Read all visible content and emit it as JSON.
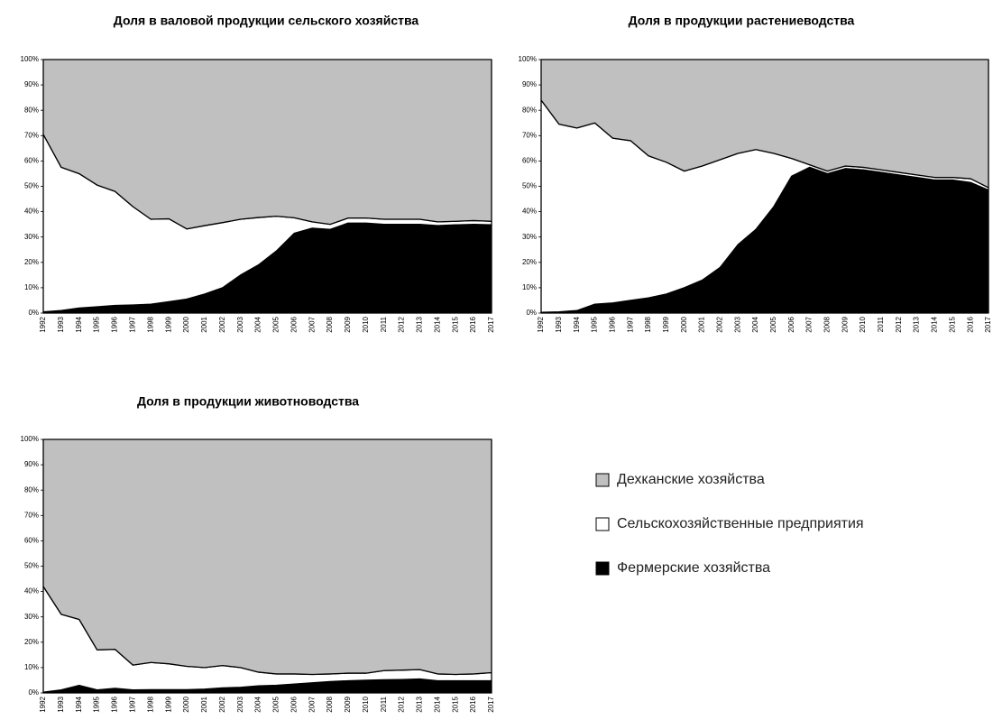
{
  "chart_data": [
    {
      "type": "area",
      "stacked": true,
      "title": "Доля в валовой продукции сельского хозяйства",
      "categories": [
        "1992",
        "1993",
        "1994",
        "1995",
        "1996",
        "1997",
        "1998",
        "1999",
        "2000",
        "2001",
        "2002",
        "2003",
        "2004",
        "2005",
        "2006",
        "2007",
        "2008",
        "2009",
        "2010",
        "2011",
        "2012",
        "2013",
        "2014",
        "2015",
        "2016",
        "2017"
      ],
      "series": [
        {
          "name": "Фермерские хозяйства",
          "color": "#000000",
          "values": [
            0.5,
            1,
            2,
            2.5,
            3,
            3.2,
            3.5,
            4.5,
            5.5,
            7.5,
            10,
            15,
            19,
            24.5,
            31.5,
            33.5,
            33,
            35.5,
            35.5,
            35,
            35,
            35,
            34.5,
            34.8,
            35,
            34.8
          ]
        },
        {
          "name": "Сельскохозяйственные предприятия",
          "color": "#ffffff",
          "values": [
            70,
            56.5,
            53,
            48,
            45,
            38.8,
            33.5,
            32.7,
            27.7,
            27,
            25.7,
            22,
            18.7,
            13.7,
            6.1,
            2.5,
            2,
            2,
            2,
            2,
            2,
            2,
            1.5,
            1.4,
            1.5,
            1.4
          ]
        },
        {
          "name": "Дехканские хозяйства",
          "color": "#c0c0c0",
          "values": [
            29.5,
            42.5,
            45,
            49.5,
            52,
            58,
            63,
            62.8,
            66.8,
            65.5,
            64.3,
            63,
            62.3,
            61.8,
            62.4,
            64,
            65,
            62.5,
            62.5,
            63,
            63,
            63,
            64,
            63.8,
            63.5,
            63.8
          ]
        }
      ],
      "ylim": [
        0,
        100
      ],
      "yticks": [
        {
          "value": 0,
          "label": "0%"
        },
        {
          "value": 10,
          "label": "10%"
        },
        {
          "value": 20,
          "label": "20%"
        },
        {
          "value": 30,
          "label": "30%"
        },
        {
          "value": 40,
          "label": "40%"
        },
        {
          "value": 50,
          "label": "50%"
        },
        {
          "value": 60,
          "label": "60%"
        },
        {
          "value": 70,
          "label": "70%"
        },
        {
          "value": 80,
          "label": "80%"
        },
        {
          "value": 90,
          "label": "90%"
        },
        {
          "value": 100,
          "label": "100%"
        }
      ]
    },
    {
      "type": "area",
      "stacked": true,
      "title": "Доля в продукции растениеводства",
      "categories": [
        "1992",
        "1993",
        "1994",
        "1995",
        "1996",
        "1997",
        "1998",
        "1999",
        "2000",
        "2001",
        "2002",
        "2003",
        "2004",
        "2005",
        "2006",
        "2007",
        "2008",
        "2009",
        "2010",
        "2011",
        "2012",
        "2013",
        "2014",
        "2015",
        "2016",
        "2017"
      ],
      "series": [
        {
          "name": "Фермерские хозяйства",
          "color": "#000000",
          "values": [
            0.3,
            0.5,
            1,
            3.5,
            4,
            5,
            6,
            7.5,
            10,
            13,
            18,
            27,
            33,
            42,
            54,
            57.5,
            55,
            57,
            56.5,
            55.5,
            54.5,
            53.5,
            52.5,
            52.5,
            51.5,
            48.5
          ]
        },
        {
          "name": "Сельскохозяйственные предприятия",
          "color": "#ffffff",
          "values": [
            83.7,
            74,
            72,
            71.5,
            65,
            63,
            56,
            52,
            46,
            45,
            42.5,
            36,
            31.5,
            21,
            7,
            1,
            1,
            1,
            1,
            1,
            1,
            1,
            1,
            1,
            1.5,
            1
          ]
        },
        {
          "name": "Дехканские хозяйства",
          "color": "#c0c0c0",
          "values": [
            16,
            25.5,
            27,
            25,
            31,
            32,
            38,
            40.5,
            44,
            42,
            39.5,
            37,
            35.5,
            37,
            39,
            41.5,
            44,
            42,
            42.5,
            43.5,
            44.5,
            45.5,
            46.5,
            46.5,
            47,
            50.5
          ]
        }
      ],
      "ylim": [
        0,
        100
      ],
      "yticks": [
        {
          "value": 0,
          "label": "0%"
        },
        {
          "value": 10,
          "label": "10%"
        },
        {
          "value": 20,
          "label": "20%"
        },
        {
          "value": 30,
          "label": "30%"
        },
        {
          "value": 40,
          "label": "40%"
        },
        {
          "value": 50,
          "label": "50%"
        },
        {
          "value": 60,
          "label": "60%"
        },
        {
          "value": 70,
          "label": "70%"
        },
        {
          "value": 80,
          "label": "80%"
        },
        {
          "value": 90,
          "label": "90%"
        },
        {
          "value": 100,
          "label": "100%"
        }
      ]
    },
    {
      "type": "area",
      "stacked": true,
      "title": "Доля в продукции животноводства",
      "categories": [
        "1992",
        "1993",
        "1994",
        "1995",
        "1996",
        "1997",
        "1998",
        "1999",
        "2000",
        "2001",
        "2002",
        "2003",
        "2004",
        "2005",
        "2006",
        "2007",
        "2008",
        "2009",
        "2010",
        "2011",
        "2012",
        "2013",
        "2014",
        "2015",
        "2016",
        "2017"
      ],
      "series": [
        {
          "name": "Фермерские хозяйства",
          "color": "#000000",
          "values": [
            0.3,
            1.2,
            3,
            1.2,
            1.8,
            1.2,
            1.3,
            1.3,
            1.3,
            1.5,
            2,
            2.2,
            2.8,
            3,
            3.5,
            4,
            4.5,
            4.8,
            5,
            5.2,
            5.3,
            5.5,
            4.8,
            4.8,
            4.8,
            4.8
          ]
        },
        {
          "name": "Сельскохозяйственные предприятия",
          "color": "#ffffff",
          "values": [
            41.7,
            29.8,
            26,
            15.8,
            15.4,
            9.8,
            10.7,
            10.2,
            9.2,
            8.5,
            8.8,
            7.8,
            5.4,
            4.5,
            4,
            3.3,
            3,
            3,
            2.8,
            3.6,
            3.7,
            3.7,
            2.7,
            2.5,
            2.7,
            3.2
          ]
        },
        {
          "name": "Дехканские хозяйства",
          "color": "#c0c0c0",
          "values": [
            58,
            69,
            71,
            83,
            82.8,
            89,
            88,
            88.5,
            89.5,
            90,
            89.2,
            90,
            91.8,
            92.5,
            92.5,
            92.7,
            92.5,
            92.2,
            92.2,
            91.2,
            91,
            90.8,
            92.5,
            92.7,
            92.5,
            92
          ]
        }
      ],
      "ylim": [
        0,
        100
      ],
      "yticks": [
        {
          "value": 0,
          "label": "0%"
        },
        {
          "value": 10,
          "label": "10%"
        },
        {
          "value": 20,
          "label": "20%"
        },
        {
          "value": 30,
          "label": "30%"
        },
        {
          "value": 40,
          "label": "40%"
        },
        {
          "value": 50,
          "label": "50%"
        },
        {
          "value": 60,
          "label": "60%"
        },
        {
          "value": 70,
          "label": "70%"
        },
        {
          "value": 80,
          "label": "80%"
        },
        {
          "value": 90,
          "label": "90%"
        },
        {
          "value": 100,
          "label": "100%"
        }
      ]
    }
  ]
}
